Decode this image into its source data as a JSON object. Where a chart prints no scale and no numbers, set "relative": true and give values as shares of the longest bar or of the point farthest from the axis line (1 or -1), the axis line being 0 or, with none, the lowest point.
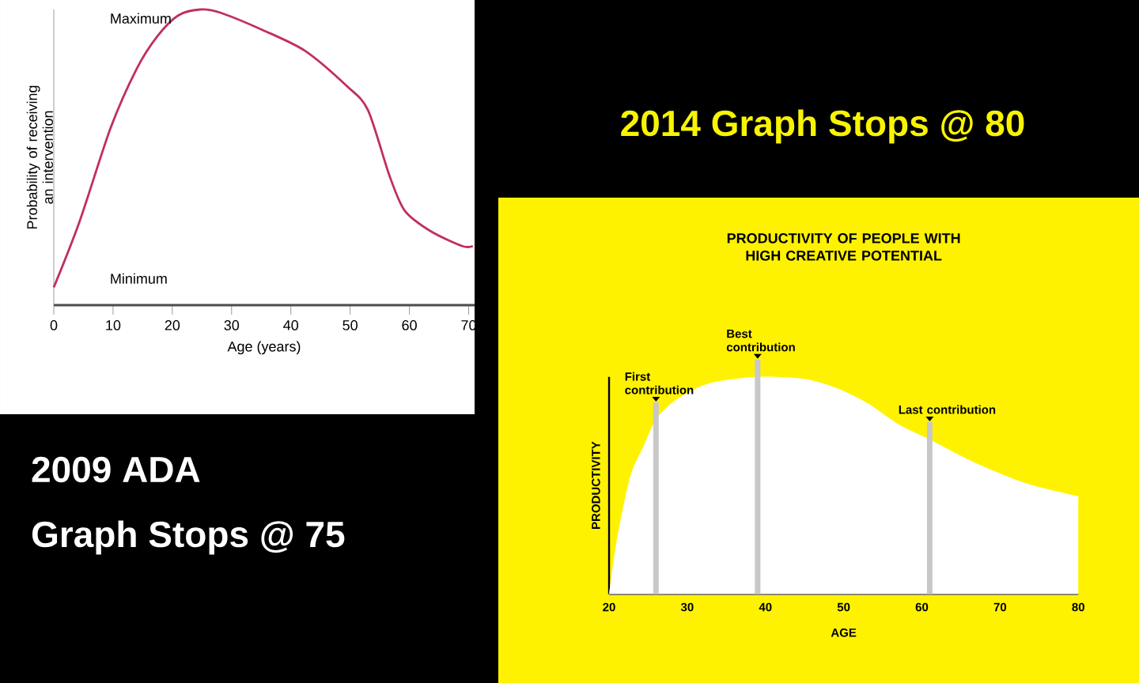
{
  "chart_data": [
    {
      "type": "line",
      "xlabel": "Age (years)",
      "ylabel": "Probability of receiving an intervention",
      "relative": true,
      "x": [
        0,
        4.3,
        9.6,
        14,
        17.5,
        21,
        24.7,
        28,
        35.3,
        42.4,
        49.5,
        53,
        56.6,
        59.2,
        63.6,
        68.9,
        70.7
      ],
      "series": [
        {
          "color": "#c0305a",
          "values": [
            0.06,
            0.28,
            0.6,
            0.8,
            0.91,
            0.98,
            1.0,
            0.99,
            0.93,
            0.86,
            0.74,
            0.66,
            0.44,
            0.32,
            0.25,
            0.2,
            0.2
          ]
        }
      ],
      "xlim": [
        0,
        71
      ],
      "xticks": [
        0,
        10,
        20,
        30,
        40,
        50,
        60,
        70
      ],
      "annotations": [
        "Maximum",
        "Minimum",
        "2009 ADA",
        "Graph Stops @ 75"
      ]
    },
    {
      "type": "area",
      "title": "PRODUCTIVITY OF PEOPLE WITH HIGH CREATIVE POTENTIAL",
      "xlabel": "AGE",
      "ylabel": "PRODUCTIVITY",
      "relative": true,
      "x": [
        20,
        21,
        22.7,
        24.4,
        26.1,
        28.8,
        32.8,
        38.9,
        45,
        49,
        53,
        57.1,
        61.1,
        66.5,
        73.3,
        80
      ],
      "series": [
        {
          "color": "#ffffff",
          "values": [
            0,
            0.25,
            0.54,
            0.68,
            0.81,
            0.9,
            0.97,
            1.0,
            0.99,
            0.95,
            0.88,
            0.78,
            0.71,
            0.61,
            0.51,
            0.45
          ]
        }
      ],
      "xlim": [
        20,
        80
      ],
      "xticks": [
        20,
        30,
        40,
        50,
        60,
        70,
        80
      ],
      "ref_lines": [
        {
          "axis": "x",
          "value": 26,
          "label": "First contribution",
          "color": "#c8c8c8"
        },
        {
          "axis": "x",
          "value": 39,
          "label": "Best contribution",
          "color": "#c8c8c8"
        },
        {
          "axis": "x",
          "value": 61,
          "label": "Last contribution",
          "color": "#c8c8c8"
        }
      ],
      "annotations": [
        "2014 Graph Stops @ 80"
      ]
    }
  ]
}
